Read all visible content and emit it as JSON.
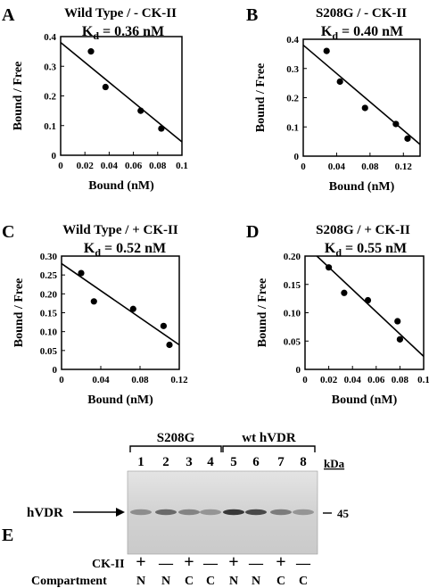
{
  "figure": {
    "panels": [
      {
        "id": "A",
        "title": "Wild Type  / - CK-II",
        "kd_label": "K",
        "kd_sub": "d",
        "kd_value": " = 0.36 nM"
      },
      {
        "id": "B",
        "title": "S208G  / - CK-II",
        "kd_label": "K",
        "kd_sub": "d",
        "kd_value": " = 0.40 nM"
      },
      {
        "id": "C",
        "title": "Wild Type  / + CK-II",
        "kd_label": "K",
        "kd_sub": "d",
        "kd_value": " = 0.52 nM"
      },
      {
        "id": "D",
        "title": "S208G  / + CK-II",
        "kd_label": "K",
        "kd_sub": "d",
        "kd_value": " = 0.55 nM"
      }
    ]
  },
  "chart_data": [
    {
      "type": "scatter",
      "panel": "A",
      "title": "Wild Type  / - CK-II",
      "subtitle": "Kd = 0.36 nM",
      "xlabel": "Bound (nM)",
      "ylabel": "Bound / Free",
      "xlim": [
        0,
        0.1
      ],
      "ylim": [
        0,
        0.4
      ],
      "xticks": [
        0,
        0.02,
        0.04,
        0.06,
        0.08,
        0.1
      ],
      "xtick_labels": [
        "0",
        "0.02",
        "0.04",
        "0.06",
        "0.08",
        "0.1"
      ],
      "yticks": [
        0,
        0.1,
        0.2,
        0.3,
        0.4
      ],
      "ytick_labels": [
        "0",
        "0.1",
        "0.2",
        "0.3",
        "0.4"
      ],
      "points": {
        "x": [
          0.025,
          0.037,
          0.066,
          0.083
        ],
        "y": [
          0.35,
          0.23,
          0.15,
          0.09
        ]
      },
      "fit_line": {
        "x": [
          0,
          0.1
        ],
        "y": [
          0.38,
          0.045
        ]
      }
    },
    {
      "type": "scatter",
      "panel": "B",
      "title": "S208G  / - CK-II",
      "subtitle": "Kd = 0.40 nM",
      "xlabel": "Bound (nM)",
      "ylabel": "Bound / Free",
      "xlim": [
        0,
        0.14
      ],
      "ylim": [
        0,
        0.4
      ],
      "xticks": [
        0,
        0.04,
        0.08,
        0.12
      ],
      "xtick_labels": [
        "0",
        "0.04",
        "0.08",
        "0.12"
      ],
      "yticks": [
        0,
        0.1,
        0.2,
        0.3,
        0.4
      ],
      "ytick_labels": [
        "0",
        "0.1",
        "0.2",
        "0.3",
        "0.4"
      ],
      "points": {
        "x": [
          0.028,
          0.044,
          0.074,
          0.111,
          0.125
        ],
        "y": [
          0.36,
          0.255,
          0.165,
          0.11,
          0.06
        ]
      },
      "fit_line": {
        "x": [
          0,
          0.14
        ],
        "y": [
          0.38,
          0.04
        ]
      }
    },
    {
      "type": "scatter",
      "panel": "C",
      "title": "Wild Type  / + CK-II",
      "subtitle": "Kd = 0.52 nM",
      "xlabel": "Bound (nM)",
      "ylabel": "Bound / Free",
      "xlim": [
        0,
        0.12
      ],
      "ylim": [
        0,
        0.3
      ],
      "xticks": [
        0,
        0.04,
        0.08,
        0.12
      ],
      "xtick_labels": [
        "0",
        "0.04",
        "0.08",
        "0.12"
      ],
      "yticks": [
        0,
        0.05,
        0.1,
        0.15,
        0.2,
        0.25,
        0.3
      ],
      "ytick_labels": [
        "0",
        "0.05",
        "0.10",
        "0.15",
        "0.20",
        "0.25",
        "0.30"
      ],
      "points": {
        "x": [
          0.02,
          0.033,
          0.073,
          0.104,
          0.11
        ],
        "y": [
          0.255,
          0.18,
          0.16,
          0.115,
          0.065
        ]
      },
      "fit_line": {
        "x": [
          0,
          0.12
        ],
        "y": [
          0.28,
          0.065
        ]
      }
    },
    {
      "type": "scatter",
      "panel": "D",
      "title": "S208G  / + CK-II",
      "subtitle": "Kd = 0.55 nM",
      "xlabel": "Bound (nM)",
      "ylabel": "Bound / Free",
      "xlim": [
        0,
        0.1
      ],
      "ylim": [
        0,
        0.2
      ],
      "xticks": [
        0,
        0.02,
        0.04,
        0.06,
        0.08,
        0.1
      ],
      "xtick_labels": [
        "0",
        "0.02",
        "0.04",
        "0.06",
        "0.08",
        "0.1"
      ],
      "yticks": [
        0,
        0.05,
        0.1,
        0.15,
        0.2
      ],
      "ytick_labels": [
        "0",
        "0.05",
        "0.10",
        "0.15",
        "0.20"
      ],
      "points": {
        "x": [
          0.02,
          0.033,
          0.053,
          0.078,
          0.08
        ],
        "y": [
          0.18,
          0.135,
          0.122,
          0.085,
          0.053
        ]
      },
      "fit_line": {
        "x": [
          0.01,
          0.1
        ],
        "y": [
          0.2,
          0.023
        ]
      }
    }
  ],
  "gel": {
    "panel_label": "E",
    "group_labels": [
      "S208G",
      "wt hVDR"
    ],
    "lane_numbers": [
      "1",
      "2",
      "3",
      "4",
      "5",
      "6",
      "7",
      "8"
    ],
    "kda_label": "kDa",
    "marker_value": "45",
    "band_label": "hVDR",
    "row_labels": [
      "CK-II",
      "Compartment"
    ],
    "ck2": [
      "+",
      "—",
      "+",
      "—",
      "+",
      "—",
      "+",
      "—"
    ],
    "compartment": [
      "N",
      "N",
      "C",
      "C",
      "N",
      "N",
      "C",
      "C"
    ],
    "band_intensity": [
      0.35,
      0.55,
      0.4,
      0.3,
      0.85,
      0.75,
      0.45,
      0.3
    ]
  }
}
